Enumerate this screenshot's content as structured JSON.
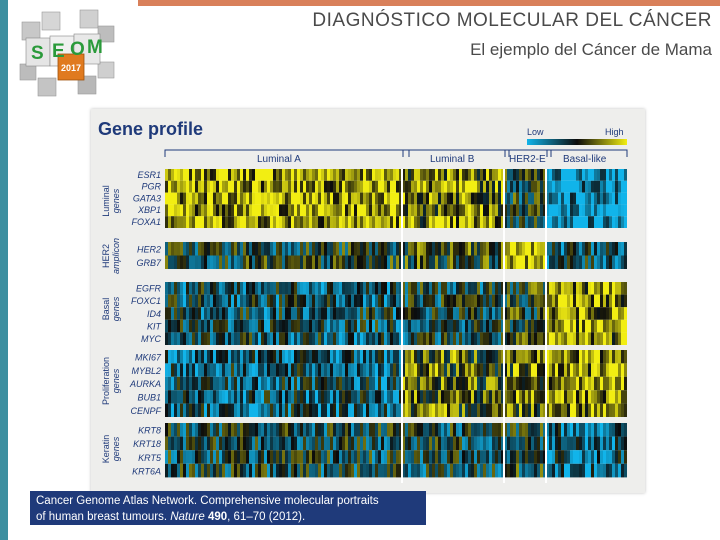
{
  "slide": {
    "title": "DIAGNÓSTICO MOLECULAR DEL CÁNCER",
    "subtitle": "El ejemplo del Cáncer de Mama"
  },
  "logo": {
    "text": "SEOM",
    "year": "2017",
    "icon": "cube-cluster-logo-icon"
  },
  "figure": {
    "title": "Gene profile",
    "legend": {
      "low": "Low",
      "high": "High"
    },
    "subtypes": [
      "Luminal A",
      "Luminal B",
      "HER2-E",
      "Basal-like"
    ],
    "groups": [
      {
        "label1": "Luminal",
        "label2": "genes",
        "genes": [
          "ESR1",
          "PGR",
          "GATA3",
          "XBP1",
          "FOXA1"
        ]
      },
      {
        "label1": "HER2",
        "label2": "amplicon",
        "genes": [
          "HER2",
          "GRB7"
        ]
      },
      {
        "label1": "Basal",
        "label2": "genes",
        "genes": [
          "EGFR",
          "FOXC1",
          "ID4",
          "KIT",
          "MYC"
        ]
      },
      {
        "label1": "Proliferation",
        "label2": "genes",
        "genes": [
          "MKI67",
          "MYBL2",
          "AURKA",
          "BUB1",
          "CENPF"
        ]
      },
      {
        "label1": "Keratin",
        "label2": "genes",
        "genes": [
          "KRT8",
          "KRT18",
          "KRT5",
          "KRT6A"
        ]
      }
    ],
    "colors": {
      "low": "#11b4ea",
      "mid": "#0b0b0b",
      "high": "#f2ee12",
      "accent": "#1f3a7a"
    }
  },
  "citation": {
    "line1": "Cancer Genome Atlas Network. Comprehensive molecular portraits",
    "line2_prefix": "of human breast tumours. ",
    "journal": "Nature",
    "volume": "490",
    "pages": ", 61–70 (2012)."
  }
}
